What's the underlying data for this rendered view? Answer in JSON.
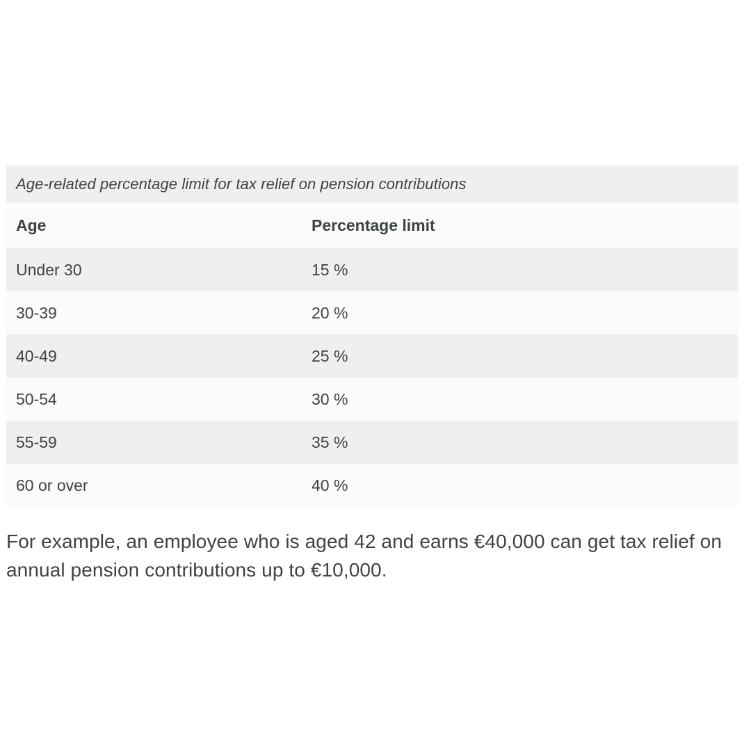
{
  "colors": {
    "row_stripe": "#eef0f0",
    "row_alt": "#fafbfb",
    "text": "#3f4345",
    "page_background": "#ffffff"
  },
  "table": {
    "caption": "Age-related percentage limit for tax relief on pension contributions",
    "headers": {
      "age": "Age",
      "limit": "Percentage limit"
    },
    "rows": [
      {
        "age": "Under 30",
        "limit": "15 %"
      },
      {
        "age": "30-39",
        "limit": "20 %"
      },
      {
        "age": "40-49",
        "limit": "25 %"
      },
      {
        "age": "50-54",
        "limit": "30 %"
      },
      {
        "age": "55-59",
        "limit": "35 %"
      },
      {
        "age": "60 or over",
        "limit": "40 %"
      }
    ]
  },
  "example_paragraph": {
    "full_text": "For example, an employee who is aged 42 and earns €40,000 can get tax relief on annual pension contributions up to €10,000.",
    "lines": [
      "For example, an employee who is aged 42 and earns €40,000 can get tax relief on",
      "annual pension contributions up to €10,000."
    ]
  }
}
